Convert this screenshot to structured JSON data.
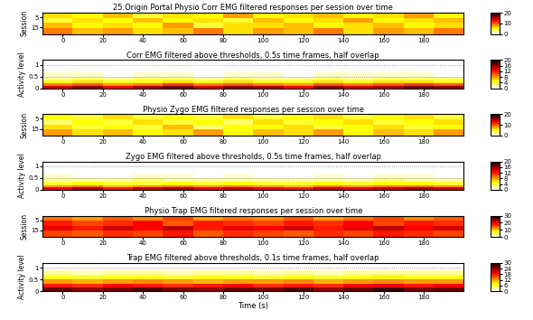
{
  "chart_data": [
    {
      "type": "heatmap",
      "title": "25.Origin Portal Physio Corr EMG filtered responses per session over time",
      "y_label": "Session",
      "x_edges": [
        -10,
        5,
        20,
        35,
        50,
        65,
        80,
        95,
        110,
        125,
        140,
        155,
        170,
        185,
        200
      ],
      "y_edges": [
        0.5,
        5.5,
        10.5,
        15.5,
        21.5
      ],
      "cells": [
        [
          6,
          5,
          7,
          4,
          6,
          5,
          8,
          5,
          6,
          7,
          5,
          6,
          8,
          5
        ],
        [
          4,
          6,
          5,
          7,
          5,
          6,
          4,
          7,
          5,
          6,
          8,
          5,
          6,
          7
        ],
        [
          7,
          5,
          6,
          5,
          8,
          4,
          6,
          6,
          7,
          5,
          6,
          7,
          5,
          6
        ],
        [
          9,
          7,
          8,
          6,
          7,
          9,
          6,
          8,
          7,
          9,
          6,
          8,
          7,
          9
        ]
      ],
      "xlim": [
        -10,
        200
      ],
      "xticks": [
        0,
        20,
        40,
        60,
        80,
        100,
        120,
        140,
        160,
        180
      ],
      "ylim": [
        21.5,
        0.5
      ],
      "yticks": [
        5,
        15
      ],
      "colorbar": {
        "range": [
          0,
          20
        ],
        "ticks": [
          0,
          10,
          20
        ]
      }
    },
    {
      "type": "heatmap",
      "title": "Corr EMG filtered above thresholds, 0.5s time frames, half overlap",
      "y_label": "Activity level",
      "x_edges": [
        -10,
        5,
        20,
        35,
        50,
        65,
        80,
        95,
        110,
        125,
        140,
        155,
        170,
        185,
        200
      ],
      "y_edges": [
        0,
        0.1,
        0.2,
        0.35,
        0.5,
        0.7
      ],
      "cells": [
        [
          14,
          16,
          13,
          15,
          17,
          14,
          16,
          15,
          13,
          16,
          14,
          15,
          17,
          16
        ],
        [
          9,
          10,
          8,
          9,
          11,
          9,
          10,
          9,
          8,
          10,
          9,
          10,
          11,
          10
        ],
        [
          5,
          6,
          5,
          5,
          6,
          5,
          6,
          5,
          5,
          6,
          5,
          6,
          6,
          5
        ],
        [
          2,
          3,
          2,
          3,
          3,
          2,
          3,
          2,
          2,
          3,
          2,
          3,
          3,
          3
        ],
        [
          1,
          1,
          0,
          1,
          1,
          0,
          1,
          1,
          0,
          1,
          1,
          1,
          1,
          0
        ]
      ],
      "xlim": [
        -10,
        200
      ],
      "xticks": [
        0,
        20,
        40,
        60,
        80,
        100,
        120,
        140,
        160,
        180
      ],
      "ylim": [
        0,
        1.2
      ],
      "yticks": [
        0,
        0.5,
        1
      ],
      "grid": true,
      "colorbar": {
        "range": [
          0,
          20
        ],
        "ticks": [
          0,
          4,
          8,
          12,
          16,
          20
        ]
      }
    },
    {
      "type": "heatmap",
      "title": "Physio Zygo EMG filtered responses per session over time",
      "y_label": "Session",
      "x_edges": [
        -10,
        5,
        20,
        35,
        50,
        65,
        80,
        95,
        110,
        125,
        140,
        155,
        170,
        185,
        200
      ],
      "y_edges": [
        0.5,
        5.5,
        10.5,
        15.5,
        21.5
      ],
      "cells": [
        [
          5,
          4,
          6,
          4,
          5,
          4,
          6,
          4,
          5,
          6,
          4,
          5,
          6,
          4
        ],
        [
          3,
          5,
          4,
          6,
          4,
          5,
          3,
          6,
          4,
          5,
          6,
          4,
          5,
          6
        ],
        [
          6,
          4,
          5,
          4,
          7,
          3,
          5,
          5,
          6,
          4,
          5,
          6,
          4,
          5
        ],
        [
          8,
          6,
          7,
          5,
          6,
          8,
          5,
          7,
          6,
          8,
          5,
          7,
          6,
          8
        ]
      ],
      "xlim": [
        -10,
        200
      ],
      "xticks": [
        0,
        20,
        40,
        60,
        80,
        100,
        120,
        140,
        160,
        180
      ],
      "ylim": [
        21.5,
        0.5
      ],
      "yticks": [
        5,
        15
      ],
      "colorbar": {
        "range": [
          0,
          20
        ],
        "ticks": [
          0,
          10,
          20
        ]
      }
    },
    {
      "type": "heatmap",
      "title": "Zygo EMG filtered above thresholds, 0.5s time frames, half overlap",
      "y_label": "Activity level",
      "x_edges": [
        -10,
        5,
        20,
        35,
        50,
        65,
        80,
        95,
        110,
        125,
        140,
        155,
        170,
        185,
        200
      ],
      "y_edges": [
        0,
        0.1,
        0.2,
        0.35,
        0.5,
        0.7
      ],
      "cells": [
        [
          13,
          15,
          12,
          14,
          15,
          13,
          14,
          13,
          12,
          14,
          13,
          14,
          15,
          14
        ],
        [
          8,
          9,
          7,
          8,
          9,
          8,
          9,
          8,
          7,
          9,
          8,
          9,
          9,
          8
        ],
        [
          4,
          5,
          4,
          4,
          5,
          4,
          5,
          4,
          4,
          5,
          4,
          5,
          5,
          4
        ],
        [
          2,
          2,
          2,
          3,
          2,
          2,
          2,
          2,
          2,
          2,
          2,
          3,
          2,
          2
        ],
        [
          1,
          0,
          0,
          1,
          1,
          0,
          1,
          0,
          0,
          1,
          0,
          1,
          1,
          0
        ]
      ],
      "xlim": [
        -10,
        200
      ],
      "xticks": [
        0,
        20,
        40,
        60,
        80,
        100,
        120,
        140,
        160,
        180
      ],
      "ylim": [
        0,
        1.2
      ],
      "yticks": [
        0,
        0.5,
        1
      ],
      "grid": true,
      "colorbar": {
        "range": [
          0,
          20
        ],
        "ticks": [
          0,
          4,
          8,
          12,
          16,
          20
        ]
      }
    },
    {
      "type": "heatmap",
      "title": "Physio Trap EMG filtered responses per session over time",
      "y_label": "Session",
      "x_edges": [
        -10,
        5,
        20,
        35,
        50,
        65,
        80,
        95,
        110,
        125,
        140,
        155,
        170,
        185,
        200
      ],
      "y_edges": [
        0.5,
        5.5,
        10.5,
        15.5,
        21.5
      ],
      "cells": [
        [
          14,
          12,
          15,
          13,
          16,
          12,
          14,
          13,
          15,
          12,
          14,
          16,
          13,
          15
        ],
        [
          18,
          16,
          17,
          19,
          15,
          18,
          17,
          16,
          18,
          17,
          19,
          16,
          18,
          17
        ],
        [
          20,
          18,
          21,
          19,
          22,
          18,
          20,
          19,
          21,
          18,
          20,
          22,
          19,
          21
        ],
        [
          16,
          15,
          17,
          16,
          18,
          15,
          17,
          16,
          15,
          17,
          16,
          18,
          17,
          16
        ]
      ],
      "xlim": [
        -10,
        200
      ],
      "xticks": [
        0,
        20,
        40,
        60,
        80,
        100,
        120,
        140,
        160,
        180
      ],
      "ylim": [
        21.5,
        0.5
      ],
      "yticks": [
        5,
        15
      ],
      "colorbar": {
        "range": [
          0,
          30
        ],
        "ticks": [
          0,
          10,
          20,
          30
        ]
      }
    },
    {
      "type": "heatmap",
      "title": "Trap EMG filtered above thresholds, 0.1s time frames, half overlap",
      "y_label": "Activity level",
      "x_label": "Time (s)",
      "x_edges": [
        -10,
        5,
        20,
        35,
        50,
        65,
        80,
        95,
        110,
        125,
        140,
        155,
        170,
        185,
        200
      ],
      "y_edges": [
        0,
        0.15,
        0.3,
        0.5,
        0.7,
        0.9
      ],
      "cells": [
        [
          26,
          24,
          25,
          27,
          25,
          24,
          26,
          25,
          27,
          24,
          26,
          28,
          25,
          26
        ],
        [
          18,
          17,
          19,
          18,
          17,
          18,
          19,
          17,
          18,
          17,
          19,
          20,
          18,
          19
        ],
        [
          12,
          11,
          12,
          13,
          12,
          11,
          12,
          12,
          13,
          11,
          12,
          13,
          12,
          12
        ],
        [
          7,
          6,
          7,
          7,
          6,
          7,
          7,
          6,
          7,
          6,
          7,
          8,
          7,
          7
        ],
        [
          3,
          2,
          3,
          3,
          2,
          3,
          3,
          2,
          3,
          2,
          3,
          3,
          3,
          3
        ]
      ],
      "xlim": [
        -10,
        200
      ],
      "xticks": [
        0,
        20,
        40,
        60,
        80,
        100,
        120,
        140,
        160,
        180
      ],
      "ylim": [
        0,
        1.2
      ],
      "yticks": [
        0,
        0.5,
        1
      ],
      "grid": true,
      "colorbar": {
        "range": [
          0,
          30
        ],
        "ticks": [
          0,
          6,
          12,
          18,
          24,
          30
        ]
      }
    }
  ]
}
